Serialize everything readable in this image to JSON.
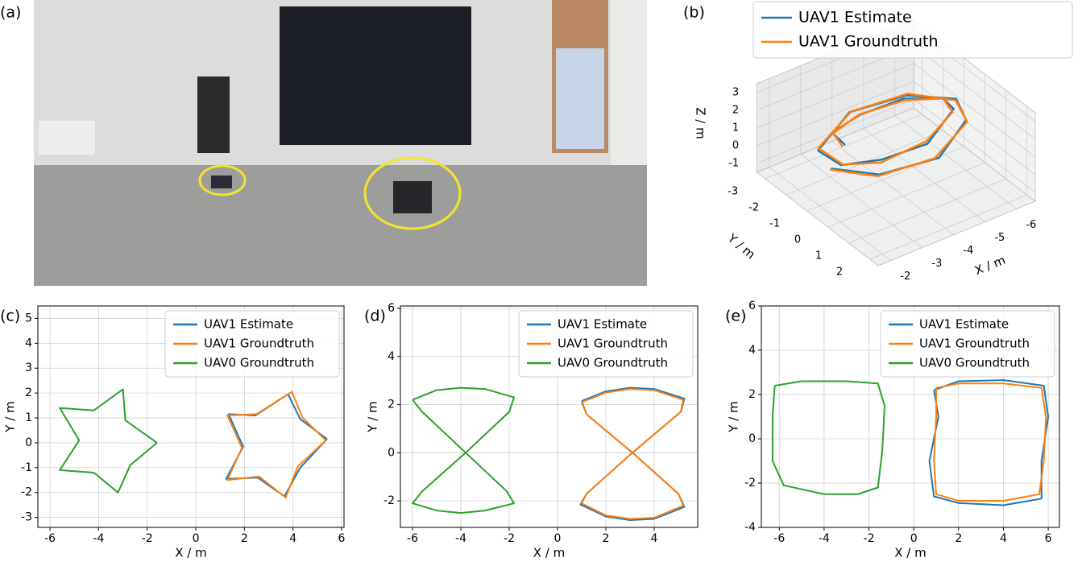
{
  "figure_labels": [
    "(a)",
    "(b)",
    "(c)",
    "(d)",
    "(e)"
  ],
  "chart_data": [
    {
      "type": "line3d",
      "x_label": "X / m",
      "y_label": "Y / m",
      "z_label": "Z / m",
      "xlim": [
        -6.6,
        -1.6
      ],
      "ylim": [
        -3.4,
        2.4
      ],
      "zlim": [
        -1.5,
        3.5
      ],
      "xticks": [
        -6,
        -5,
        -4,
        -3,
        -2
      ],
      "yticks": [
        -3,
        -2,
        -1,
        0,
        1,
        2
      ],
      "zticks": [
        -1,
        0,
        1,
        2,
        3
      ],
      "series": [
        {
          "name": "UAV1 Estimate",
          "color": "#1f77b4",
          "x": [
            -2.0,
            -2.6,
            -4.1,
            -5.4,
            -6.05,
            -5.4,
            -3.95,
            -2.55,
            -2.35,
            -2.9,
            -4.0,
            -5.2,
            -5.6,
            -5.1,
            -4.05,
            -2.8,
            -2.45
          ],
          "y": [
            -0.45,
            0.95,
            1.55,
            0.9,
            -0.55,
            -1.95,
            -2.5,
            -1.9,
            -0.5,
            0.6,
            1.15,
            0.6,
            -0.5,
            -1.65,
            -2.15,
            -1.6,
            -0.45
          ],
          "z": [
            1.1,
            1.6,
            2.0,
            2.6,
            2.0,
            1.4,
            1.0,
            0.4,
            1.0,
            1.9,
            2.5,
            3.1,
            2.4,
            1.7,
            1.1,
            1.5,
            2.1
          ]
        },
        {
          "name": "UAV1 Groundtruth",
          "color": "#ff7f0e",
          "x": [
            -2.0,
            -2.58,
            -4.0,
            -5.42,
            -6.0,
            -5.42,
            -4.0,
            -2.58,
            -2.4,
            -2.86,
            -4.0,
            -5.14,
            -5.6,
            -5.14,
            -4.0,
            -2.86,
            -2.4
          ],
          "y": [
            -0.5,
            0.92,
            1.5,
            0.92,
            -0.5,
            -1.92,
            -2.5,
            -1.92,
            -0.5,
            0.64,
            1.1,
            0.64,
            -0.5,
            -1.64,
            -2.1,
            -1.64,
            -0.5
          ],
          "z": [
            1.0,
            1.5,
            2.0,
            2.5,
            2.0,
            1.5,
            1.0,
            0.5,
            1.0,
            1.8,
            2.6,
            3.0,
            2.4,
            1.6,
            1.2,
            1.4,
            2.0
          ]
        }
      ]
    },
    {
      "type": "line",
      "x_label": "X / m",
      "y_label": "Y / m",
      "xlim": [
        -6.5,
        6.1
      ],
      "ylim": [
        -3.4,
        5.5
      ],
      "xticks": [
        -6,
        -4,
        -2,
        0,
        2,
        4,
        6
      ],
      "yticks": [
        -3,
        -2,
        -1,
        0,
        1,
        2,
        3,
        4,
        5
      ],
      "grid": true,
      "legend": "upper right",
      "series": [
        {
          "name": "UAV1 Estimate",
          "color": "#1f77b4",
          "x": [
            5.4,
            4.3,
            3.8,
            2.45,
            1.35,
            1.95,
            1.25,
            2.55,
            3.65,
            4.3,
            5.4
          ],
          "y": [
            0.15,
            0.95,
            1.95,
            1.1,
            1.15,
            -0.15,
            -1.45,
            -1.4,
            -2.15,
            -1.0,
            0.15
          ]
        },
        {
          "name": "UAV1 Groundtruth",
          "color": "#ff7f0e",
          "x": [
            5.35,
            4.4,
            3.95,
            2.5,
            1.3,
            1.9,
            1.3,
            2.6,
            3.7,
            4.2,
            5.35
          ],
          "y": [
            0.1,
            1.0,
            2.05,
            1.15,
            1.1,
            -0.2,
            -1.5,
            -1.35,
            -2.2,
            -0.95,
            0.1
          ]
        },
        {
          "name": "UAV0 Groundtruth",
          "color": "#2ca02c",
          "x": [
            -1.6,
            -2.9,
            -3.0,
            -4.2,
            -5.6,
            -4.8,
            -5.6,
            -4.2,
            -3.2,
            -2.7,
            -1.6
          ],
          "y": [
            0,
            0.9,
            2.15,
            1.3,
            1.4,
            0.1,
            -1.1,
            -1.2,
            -2.0,
            -0.9,
            0
          ]
        }
      ]
    },
    {
      "type": "line",
      "x_label": "X / m",
      "y_label": "Y / m",
      "xlim": [
        -6.5,
        5.8
      ],
      "ylim": [
        -3.1,
        6.1
      ],
      "xticks": [
        -6,
        -4,
        -2,
        0,
        2,
        4
      ],
      "yticks": [
        -2,
        0,
        2,
        4,
        6
      ],
      "grid": true,
      "legend": "upper right",
      "series": [
        {
          "name": "UAV1 Estimate",
          "color": "#1f77b4",
          "x": [
            1.0,
            2.0,
            3.0,
            4.0,
            5.25,
            5.1,
            3.1,
            1.2,
            0.95,
            2.0,
            3.0,
            4.0,
            5.25,
            5.0,
            3.1,
            1.2,
            1.0
          ],
          "y": [
            2.15,
            2.55,
            2.7,
            2.65,
            2.25,
            1.7,
            0,
            -1.7,
            -2.15,
            -2.65,
            -2.8,
            -2.75,
            -2.25,
            -1.7,
            0,
            1.6,
            2.15
          ]
        },
        {
          "name": "UAV1 Groundtruth",
          "color": "#ff7f0e",
          "x": [
            1.0,
            2.0,
            3.0,
            4.0,
            5.2,
            5.1,
            3.1,
            1.2,
            1.0,
            2.0,
            3.0,
            4.0,
            5.2,
            5.0,
            3.1,
            1.2,
            1.0
          ],
          "y": [
            2.1,
            2.5,
            2.65,
            2.6,
            2.2,
            1.7,
            0,
            -1.7,
            -2.1,
            -2.6,
            -2.75,
            -2.7,
            -2.2,
            -1.7,
            0,
            1.6,
            2.1
          ]
        },
        {
          "name": "UAV0 Groundtruth",
          "color": "#2ca02c",
          "x": [
            -6.0,
            -5.0,
            -4.0,
            -3.0,
            -1.8,
            -2.0,
            -3.8,
            -5.6,
            -6.0,
            -5.0,
            -4.0,
            -3.0,
            -1.8,
            -2.1,
            -3.8,
            -5.6,
            -6.0
          ],
          "y": [
            2.2,
            2.6,
            2.7,
            2.65,
            2.3,
            1.7,
            0,
            -1.6,
            -2.1,
            -2.4,
            -2.5,
            -2.4,
            -2.1,
            -1.6,
            0,
            1.7,
            2.2
          ]
        }
      ]
    },
    {
      "type": "line",
      "x_label": "X / m",
      "y_label": "Y / m",
      "xlim": [
        -6.8,
        6.5
      ],
      "ylim": [
        -4,
        6
      ],
      "xticks": [
        -6,
        -4,
        -2,
        0,
        2,
        4,
        6
      ],
      "yticks": [
        -4,
        -2,
        0,
        2,
        4,
        6
      ],
      "grid": true,
      "legend": "upper right",
      "series": [
        {
          "name": "UAV1 Estimate",
          "color": "#1f77b4",
          "x": [
            0.9,
            2.0,
            4.0,
            5.8,
            6.0,
            5.7,
            5.7,
            4.0,
            2.0,
            0.9,
            0.7,
            1.1,
            0.9
          ],
          "y": [
            2.2,
            2.6,
            2.65,
            2.4,
            1.0,
            -1.0,
            -2.7,
            -3.0,
            -2.9,
            -2.6,
            -1.0,
            1.0,
            2.2
          ]
        },
        {
          "name": "UAV1 Groundtruth",
          "color": "#ff7f0e",
          "x": [
            1.0,
            2.0,
            4.0,
            5.7,
            5.9,
            5.8,
            5.6,
            4.0,
            2.0,
            1.0,
            0.9,
            1.0,
            1.0
          ],
          "y": [
            2.3,
            2.5,
            2.5,
            2.3,
            1.0,
            -1.0,
            -2.5,
            -2.8,
            -2.8,
            -2.5,
            -1.0,
            1.0,
            2.3
          ]
        },
        {
          "name": "UAV0 Groundtruth",
          "color": "#2ca02c",
          "x": [
            -6.2,
            -5.0,
            -3.0,
            -1.6,
            -1.3,
            -1.4,
            -1.6,
            -2.5,
            -4.0,
            -5.8,
            -6.3,
            -6.3,
            -6.2
          ],
          "y": [
            2.4,
            2.6,
            2.6,
            2.5,
            1.5,
            -0.5,
            -2.2,
            -2.5,
            -2.5,
            -2.1,
            -1.0,
            1.0,
            2.4
          ]
        }
      ]
    }
  ]
}
